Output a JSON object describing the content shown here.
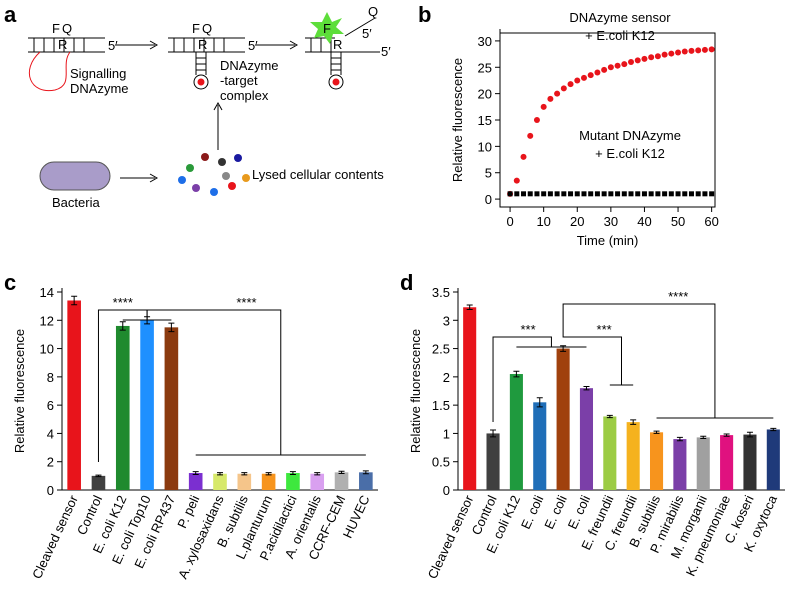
{
  "panel_labels": [
    "a",
    "b",
    "c",
    "d"
  ],
  "diagram": {
    "step1": {
      "f": "F",
      "q": "Q",
      "r": "R",
      "end": "5′",
      "caption": [
        "Signalling",
        "DNAzyme"
      ]
    },
    "step2": {
      "f": "F",
      "q": "Q",
      "r": "R",
      "end": "5′",
      "caption": [
        "DNAzyme",
        "-target",
        "complex"
      ]
    },
    "step3": {
      "f": "F",
      "q": "Q",
      "r": "R",
      "end1": "5′",
      "end2": "5′"
    },
    "bacteria": "Bacteria",
    "lysate": "Lysed cellular contents"
  },
  "chart_data": [
    {
      "type": "scatter",
      "x": [
        0,
        2,
        4,
        6,
        8,
        10,
        12,
        14,
        16,
        18,
        20,
        22,
        24,
        26,
        28,
        30,
        32,
        34,
        36,
        38,
        40,
        42,
        44,
        46,
        48,
        50,
        52,
        54,
        56,
        58,
        60
      ],
      "series": [
        {
          "name": "DNAzyme sensor",
          "note": "+ E.coli K12",
          "color": "#e8141b",
          "values": [
            1,
            3.5,
            8,
            12,
            15,
            17.5,
            19,
            20,
            21,
            21.8,
            22.5,
            23,
            23.5,
            24,
            24.5,
            25,
            25.3,
            25.6,
            26,
            26.3,
            26.6,
            26.9,
            27.1,
            27.4,
            27.6,
            27.8,
            28,
            28.1,
            28.2,
            28.3,
            28.4
          ]
        },
        {
          "name": "Mutant DNAzyme",
          "note": "+ E.coli K12",
          "color": "#000000",
          "values": [
            1,
            1,
            1,
            1,
            1,
            1,
            1,
            1,
            1,
            1,
            1,
            1,
            1,
            1,
            1,
            1,
            1,
            1,
            1,
            1,
            1,
            1,
            1,
            1,
            1,
            1,
            1,
            1,
            1,
            1,
            1
          ]
        }
      ],
      "xlabel": "Time (min)",
      "ylabel": "Relative fluorescence",
      "xlim": [
        -3,
        61
      ],
      "ylim": [
        -1.5,
        31.5
      ],
      "xticks": [
        0,
        10,
        20,
        30,
        40,
        50,
        60
      ],
      "yticks": [
        0,
        5,
        10,
        15,
        20,
        25,
        30
      ]
    },
    {
      "type": "bar",
      "categories": [
        "Cleaved sensor",
        "Control",
        "E. coli K12",
        "E. coli Top10",
        "E. coli RP437",
        "P. peli",
        "A. xylosaxidans",
        "B. subtilis",
        "L.planturum",
        "P.acidilactici",
        "A. orientalis",
        "CCRF-CEM",
        "HUVEC"
      ],
      "values": [
        13.4,
        1.0,
        11.6,
        12.0,
        11.5,
        1.2,
        1.15,
        1.15,
        1.15,
        1.2,
        1.15,
        1.25,
        1.25
      ],
      "errors": [
        0.3,
        0.05,
        0.3,
        0.25,
        0.3,
        0.1,
        0.08,
        0.08,
        0.08,
        0.1,
        0.08,
        0.08,
        0.1
      ],
      "colors": [
        "#e8141b",
        "#404040",
        "#1f8a2e",
        "#1e90ff",
        "#8b3a0f",
        "#7b2fd0",
        "#d7e96a",
        "#f5c58a",
        "#f7941d",
        "#3ee83e",
        "#d9a0f0",
        "#b0b0b0",
        "#4a6ea8"
      ],
      "ylabel": "Relative fluorescence",
      "ylim": [
        0,
        14
      ],
      "yticks": [
        0,
        2,
        4,
        6,
        8,
        10,
        12,
        14
      ],
      "significance": [
        "****",
        "****"
      ]
    },
    {
      "type": "bar",
      "categories": [
        "Cleaved sensor",
        "Control",
        "E. coli K12",
        "E. coli",
        "E. coli",
        "E. coli",
        "E. freundii",
        "C. freundii",
        "B. subtilis",
        "P. mirabilis",
        "M. morganii",
        "K. pneumoniae",
        "C. koseri",
        "K. oxytoca"
      ],
      "values": [
        3.23,
        1.0,
        2.05,
        1.55,
        2.5,
        1.8,
        1.3,
        1.2,
        1.02,
        0.9,
        0.93,
        0.97,
        0.98,
        1.07
      ],
      "errors": [
        0.04,
        0.06,
        0.05,
        0.08,
        0.05,
        0.03,
        0.02,
        0.04,
        0.02,
        0.03,
        0.02,
        0.02,
        0.04,
        0.02
      ],
      "colors": [
        "#e8141b",
        "#404040",
        "#1f9a3e",
        "#1f6eb8",
        "#a0410d",
        "#7b3fa8",
        "#9ccc44",
        "#f5b21e",
        "#f7941d",
        "#7b3fa8",
        "#a0a0a0",
        "#e0117f",
        "#333333",
        "#1f3a7a"
      ],
      "ylabel": "Relative fluorescence",
      "ylim": [
        0,
        3.5
      ],
      "yticks": [
        0,
        0.5,
        1,
        1.5,
        2,
        2.5,
        3,
        3.5
      ],
      "significance": [
        "***",
        "***",
        "****"
      ]
    }
  ]
}
